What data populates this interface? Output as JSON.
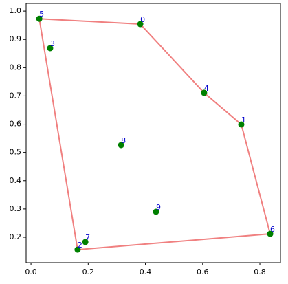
{
  "chart_data": {
    "type": "scatter",
    "series": [
      {
        "type": "scatter",
        "color": "#008000",
        "label_color": "#0000cc",
        "labels": [
          "0",
          "1",
          "2",
          "3",
          "4",
          "5",
          "6",
          "7",
          "8",
          "9"
        ],
        "x": [
          0.382,
          0.735,
          0.163,
          0.067,
          0.605,
          0.029,
          0.836,
          0.19,
          0.315,
          0.437
        ],
        "values": [
          0.954,
          0.599,
          0.156,
          0.869,
          0.711,
          0.973,
          0.212,
          0.183,
          0.526,
          0.29
        ]
      },
      {
        "type": "line",
        "color": "#f08080",
        "x": [
          0.029,
          0.382,
          0.605,
          0.735,
          0.836,
          0.163,
          0.029
        ],
        "values": [
          0.973,
          0.954,
          0.711,
          0.599,
          0.212,
          0.156,
          0.973
        ]
      }
    ],
    "xlim": [
      -0.017,
      0.872
    ],
    "ylim": [
      0.11,
      1.027
    ],
    "xticks": [
      {
        "value": 0,
        "label": "0.0"
      },
      0.2,
      0.4,
      0.6,
      0.8
    ],
    "yticks": [
      0.2,
      0.3,
      0.4,
      0.5,
      0.6,
      0.7,
      0.8,
      0.9,
      {
        "value": 1,
        "label": "1.0"
      }
    ]
  }
}
